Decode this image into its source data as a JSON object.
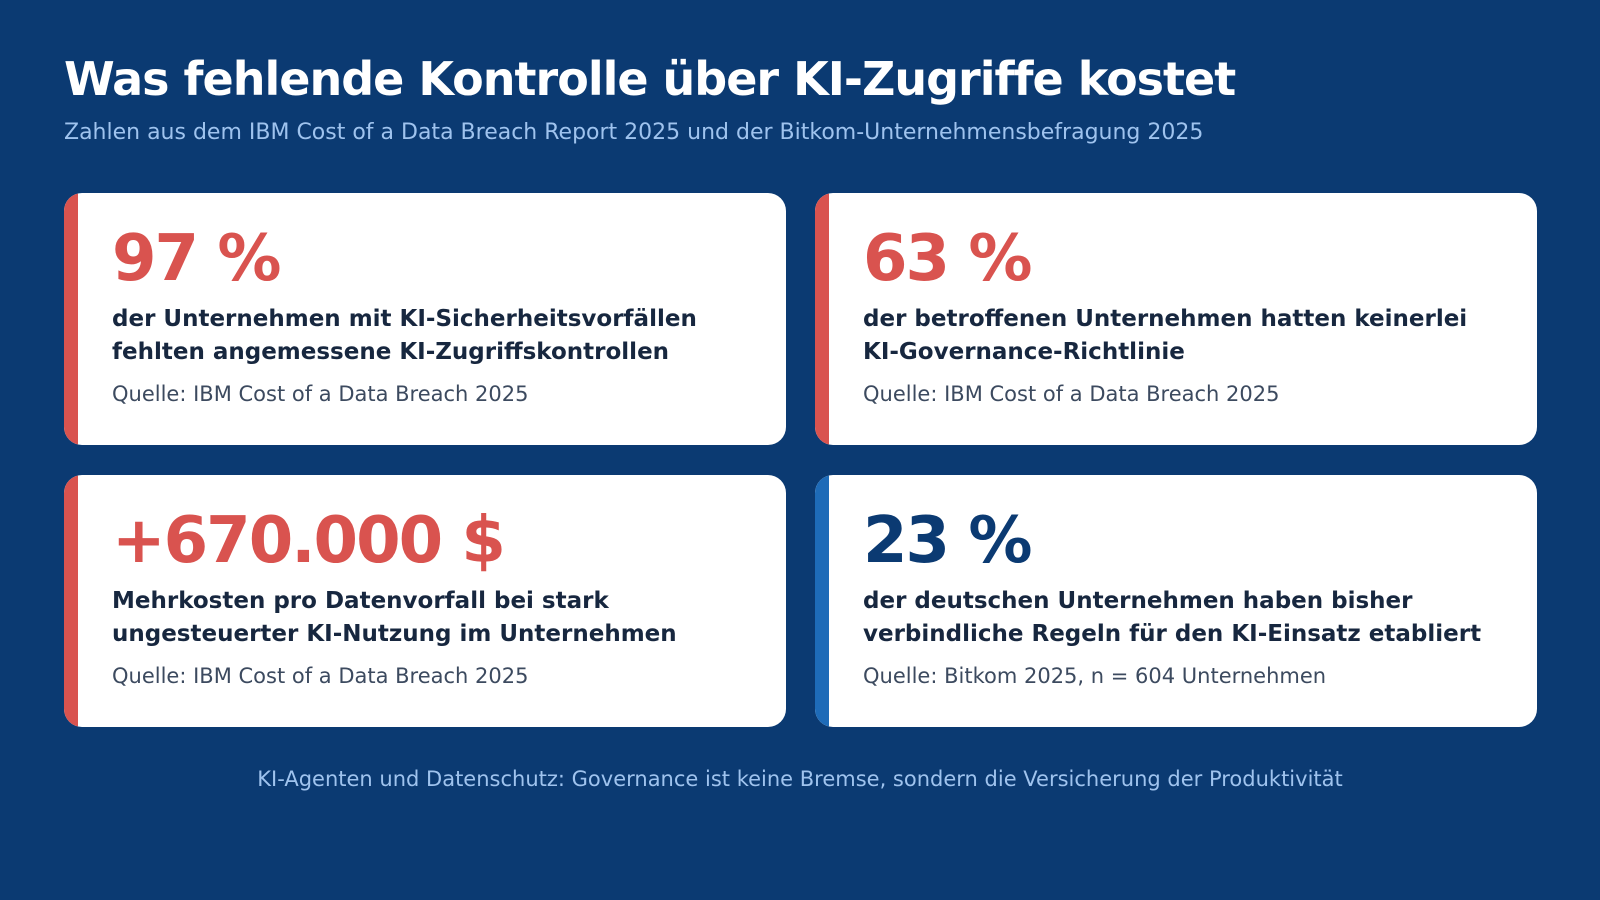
{
  "header": {
    "title": "Was fehlende Kontrolle über KI-Zugriffe kostet",
    "subtitle": "Zahlen aus dem IBM Cost of a Data Breach Report 2025 und der Bitkom-Unternehmensbefragung 2025"
  },
  "cards": [
    {
      "value": "97 %",
      "description": "der Unternehmen mit KI-Sicherheitsvorfällen fehlten angemessene KI-Zugriffskontrollen",
      "source": "Quelle: IBM Cost of a Data Breach 2025",
      "accent_color": "#d9534f",
      "value_color": "#d9534f"
    },
    {
      "value": "63 %",
      "description": "der betroffenen Unternehmen hatten keinerlei KI-Governance-Richtlinie",
      "source": "Quelle: IBM Cost of a Data Breach 2025",
      "accent_color": "#d9534f",
      "value_color": "#d9534f"
    },
    {
      "value": "+670.000 $",
      "description": "Mehrkosten pro Datenvorfall bei stark ungesteuerter KI-Nutzung im Unternehmen",
      "source": "Quelle: IBM Cost of a Data Breach 2025",
      "accent_color": "#d9534f",
      "value_color": "#d9534f"
    },
    {
      "value": "23 %",
      "description": "der deutschen Unternehmen haben bisher verbindliche Regeln für den KI-Einsatz etabliert",
      "source": "Quelle: Bitkom 2025, n = 604 Unternehmen",
      "accent_color": "#1e6bb8",
      "value_color": "#0b3a72"
    }
  ],
  "footer": {
    "text": "KI-Agenten und Datenschutz: Governance ist keine Bremse, sondern die Versicherung der Produktivität"
  },
  "colors": {
    "background": "#0b3a72",
    "card_background": "#ffffff",
    "subtitle_text": "#9fc3ee"
  }
}
